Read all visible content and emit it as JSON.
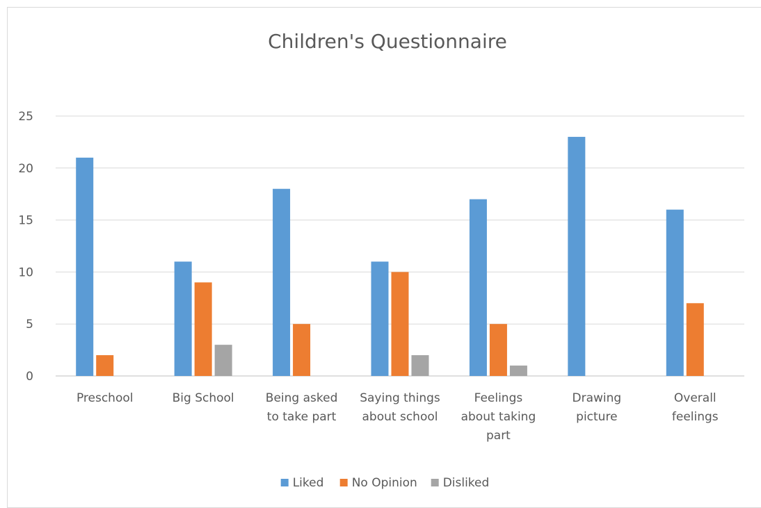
{
  "chart_data": {
    "type": "bar",
    "title": "Children's Questionnaire",
    "xlabel": "",
    "ylabel": "",
    "ylim": [
      0,
      25
    ],
    "yticks": [
      0,
      5,
      10,
      15,
      20,
      25
    ],
    "grid": true,
    "legend_position": "bottom",
    "categories": [
      [
        "Preschool"
      ],
      [
        "Big School"
      ],
      [
        "Being asked",
        "to take part"
      ],
      [
        "Saying things",
        "about school"
      ],
      [
        "Feelings",
        "about taking",
        "part"
      ],
      [
        "Drawing",
        "picture"
      ],
      [
        "Overall",
        "feelings"
      ]
    ],
    "series": [
      {
        "name": "Liked",
        "color": "#5b9bd5",
        "values": [
          21,
          11,
          18,
          11,
          17,
          23,
          16
        ]
      },
      {
        "name": "No Opinion",
        "color": "#ed7d31",
        "values": [
          2,
          9,
          5,
          10,
          5,
          0,
          7
        ]
      },
      {
        "name": "Disliked",
        "color": "#a5a5a5",
        "values": [
          0,
          3,
          0,
          2,
          1,
          0,
          0
        ]
      }
    ]
  }
}
